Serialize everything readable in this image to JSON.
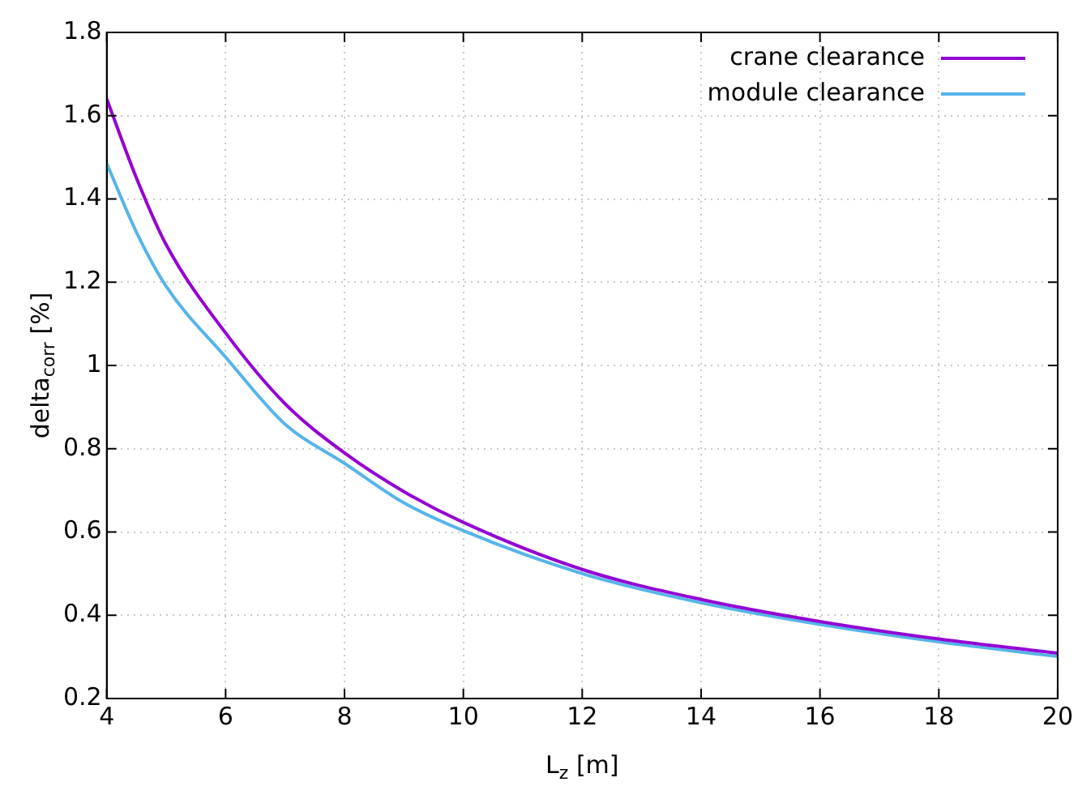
{
  "chart_data": {
    "type": "line",
    "xlabel": "L$_{z}$ [m]",
    "ylabel": "delta$_{corr}$ [%]",
    "xlim": [
      4,
      20
    ],
    "xticks": [
      4,
      6,
      8,
      10,
      12,
      14,
      16,
      18,
      20
    ],
    "ylim": [
      0.2,
      1.8
    ],
    "yticks": [
      0.2,
      0.4,
      0.6,
      0.8,
      1,
      1.2,
      1.4,
      1.6,
      1.8
    ],
    "grid": true,
    "legend": "top right",
    "marker": "none",
    "line_style": "solid",
    "x": [
      4,
      4.5,
      5,
      6,
      7,
      8,
      9,
      10,
      12,
      14,
      16,
      18,
      20
    ],
    "series": [
      {
        "name": "crane clearance",
        "color": "#9400d3",
        "values": [
          1.64,
          1.45,
          1.29,
          1.078,
          0.908,
          0.79,
          0.697,
          0.623,
          0.51,
          0.438,
          0.385,
          0.343,
          0.309
        ]
      },
      {
        "name": "module clearance",
        "color": "#56b4e9",
        "values": [
          1.485,
          1.32,
          1.19,
          1.02,
          0.859,
          0.765,
          0.67,
          0.603,
          0.5,
          0.43,
          0.378,
          0.336,
          0.301
        ]
      }
    ]
  }
}
